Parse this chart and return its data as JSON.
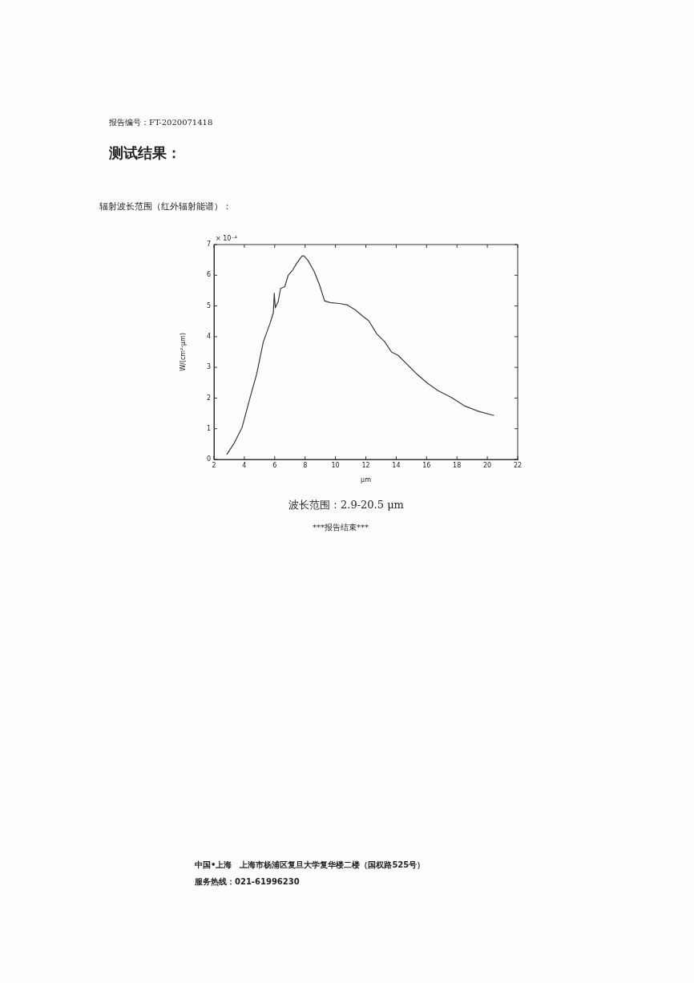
{
  "chart_data": {
    "type": "line",
    "title": "测试结果：",
    "subtitle": "辐射波长范围（红外辐射能谱）：",
    "xlabel": "μm",
    "ylabel": "W/(cm²·μm)",
    "annotations": [
      "报告编号：FT-2020071418",
      "× 10⁻⁴",
      "波长范围：2.9-20.5 μm",
      "***报告结束***",
      "中国•上海　上海市杨浦区复旦大学复华楼二楼（国权路525号）",
      "服务热线：021-61996230"
    ],
    "x": [
      2.84,
      3.32,
      3.85,
      4.37,
      4.81,
      5.25,
      5.69,
      5.91,
      5.97,
      6.04,
      6.22,
      6.39,
      6.66,
      6.89,
      7.18,
      7.45,
      7.8,
      7.92,
      8.19,
      8.59,
      8.94,
      9.29,
      9.65,
      10.26,
      10.79,
      11.31,
      11.84,
      12.19,
      12.72,
      13.25,
      13.69,
      14.13,
      14.65,
      15.36,
      16.06,
      16.76,
      17.64,
      18.52,
      19.4,
      20.45
    ],
    "values": [
      0.16,
      0.52,
      1.04,
      2.0,
      2.78,
      3.83,
      4.43,
      4.78,
      5.41,
      4.94,
      5.13,
      5.57,
      5.63,
      6.0,
      6.17,
      6.39,
      6.63,
      6.63,
      6.48,
      6.13,
      5.7,
      5.16,
      5.11,
      5.08,
      5.03,
      4.87,
      4.65,
      4.52,
      4.09,
      3.83,
      3.5,
      3.39,
      3.13,
      2.78,
      2.48,
      2.24,
      2.02,
      1.74,
      1.57,
      1.43
    ],
    "color": "#3a3a3a",
    "xlim": [
      2,
      22
    ],
    "ylim": [
      0,
      7
    ],
    "xticks": [
      2,
      4,
      6,
      8,
      10,
      12,
      14,
      16,
      18,
      20,
      22
    ],
    "yticks": [
      0,
      1,
      2,
      3,
      4,
      5,
      6,
      7
    ]
  }
}
